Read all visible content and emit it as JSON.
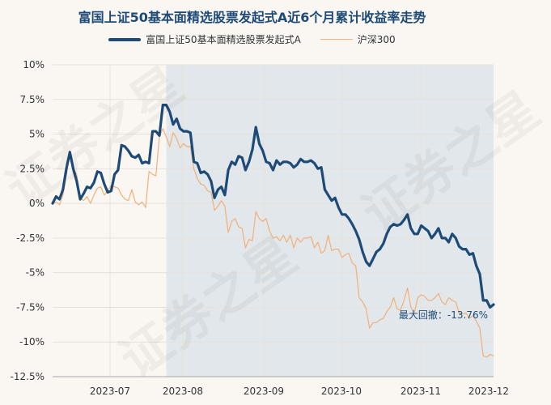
{
  "chart_data": {
    "type": "line",
    "title": "富国上证50基本面精选股票发起式A近6个月累计收益率走势",
    "xlabel": "",
    "ylabel": "",
    "x_tick_labels": [
      "2023-07",
      "2023-08",
      "2023-09",
      "2023-10",
      "2023-11",
      "2023-12"
    ],
    "y_ticks": [
      10,
      7.5,
      5,
      2.5,
      0,
      -2.5,
      -5,
      -7.5,
      -10,
      -12.5
    ],
    "y_tick_labels": [
      "10%",
      "7.5%",
      "5%",
      "2.5%",
      "0%",
      "-2.5%",
      "-5%",
      "-7.5%",
      "-10%",
      "-12.5%"
    ],
    "ylim": [
      -12.5,
      10
    ],
    "grid": true,
    "legend_position": "top-center",
    "drawdown_from_index": 33,
    "annotation": "最大回撤：-13.76%",
    "watermark": "证券之星",
    "series": [
      {
        "name": "富国上证50基本面精选股票发起式A",
        "color": "#1d4a76",
        "values": [
          0,
          0.5,
          0.3,
          1.0,
          2.5,
          3.7,
          2.5,
          1.6,
          0.3,
          0.7,
          1.2,
          1.1,
          1.5,
          2.3,
          2.2,
          1.4,
          0.8,
          0.9,
          2.1,
          2.4,
          4.2,
          4.1,
          3.8,
          3.4,
          3.3,
          3.5,
          2.9,
          3.0,
          2.9,
          5.2,
          5.2,
          4.9,
          7.1,
          7.1,
          6.6,
          5.7,
          6.1,
          5.4,
          5.2,
          5.2,
          5.1,
          3.0,
          2.9,
          2.2,
          2.3,
          2.1,
          1.6,
          0.4,
          1.0,
          1.2,
          0.6,
          2.4,
          3.0,
          2.8,
          3.4,
          3.3,
          2.4,
          3.0,
          3.9,
          5.5,
          4.3,
          3.8,
          3.0,
          2.9,
          2.4,
          3.1,
          2.8,
          3.0,
          3.0,
          2.9,
          2.6,
          2.8,
          3.2,
          3.0,
          3.0,
          3.1,
          2.9,
          2.5,
          2.6,
          1.0,
          0.6,
          0.2,
          0.4,
          -0.3,
          -0.8,
          -0.8,
          -1.1,
          -1.5,
          -2.0,
          -2.6,
          -3.5,
          -4.2,
          -4.5,
          -4.0,
          -3.5,
          -3.3,
          -2.9,
          -2.2,
          -1.7,
          -1.5,
          -1.6,
          -1.5,
          -1.2,
          -0.8,
          -1.8,
          -2.2,
          -2.2,
          -1.6,
          -1.8,
          -2.0,
          -2.5,
          -2.2,
          -1.8,
          -2.5,
          -2.5,
          -2.8,
          -2.2,
          -2.5,
          -3.1,
          -3.3,
          -3.3,
          -3.7,
          -3.6,
          -4.5,
          -5.1,
          -7.0,
          -7.0,
          -7.5,
          -7.3
        ]
      },
      {
        "name": "沪深300",
        "color": "#f0b07a",
        "values": [
          0,
          0.1,
          -0.1,
          0.6,
          2.0,
          3.7,
          2.5,
          2.1,
          0.4,
          0.2,
          0.5,
          0.0,
          0.6,
          1.1,
          1.2,
          0.6,
          0.9,
          1.3,
          1.2,
          1.1,
          0.6,
          0.3,
          0.2,
          1.0,
          0.1,
          -0.1,
          0.1,
          -0.3,
          2.3,
          2.1,
          2.0,
          4.8,
          5.4,
          4.8,
          4.1,
          5.1,
          4.7,
          4.0,
          4.3,
          4.1,
          4.1,
          2.5,
          1.8,
          1.4,
          1.3,
          0.9,
          0.8,
          -0.5,
          -0.2,
          0.2,
          -0.2,
          -2.1,
          -1.3,
          -1.1,
          -1.7,
          -1.8,
          -3.2,
          -2.6,
          -2.7,
          -0.6,
          -1.1,
          -1.3,
          -1.1,
          -2.0,
          -2.5,
          -2.4,
          -2.7,
          -2.3,
          -2.8,
          -2.3,
          -3.2,
          -2.5,
          -2.8,
          -2.5,
          -2.5,
          -2.4,
          -3.2,
          -2.8,
          -3.6,
          -3.4,
          -2.3,
          -3.4,
          -3.3,
          -3.3,
          -3.9,
          -3.7,
          -3.6,
          -4.3,
          -4.5,
          -6.8,
          -7.1,
          -7.6,
          -9.0,
          -8.6,
          -8.6,
          -8.4,
          -8.3,
          -7.8,
          -7.5,
          -6.8,
          -7.6,
          -7.7,
          -7.0,
          -6.1,
          -7.5,
          -7.9,
          -6.8,
          -6.6,
          -6.7,
          -7.0,
          -7.0,
          -6.8,
          -6.5,
          -7.1,
          -7.3,
          -6.8,
          -7.0,
          -7.1,
          -7.9,
          -8.0,
          -7.9,
          -8.3,
          -8.1,
          -8.5,
          -9.0,
          -11.0,
          -11.1,
          -10.9,
          -11.0
        ]
      }
    ]
  }
}
